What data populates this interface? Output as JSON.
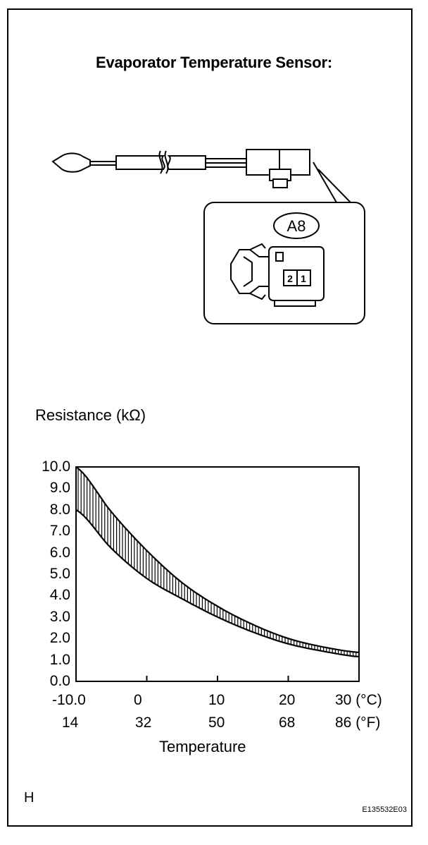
{
  "title": "Evaporator Temperature Sensor:",
  "connector": {
    "label": "A8",
    "pins": [
      "2",
      "1"
    ]
  },
  "chart_data": {
    "type": "area",
    "title": "",
    "ylabel": "Resistance (kΩ)",
    "xlabel": "Temperature",
    "x": [
      -10,
      -5,
      0,
      5,
      10,
      15,
      20,
      25,
      30
    ],
    "series": [
      {
        "values": [
          10.0,
          7.9,
          6.1,
          4.6,
          3.5,
          2.65,
          2.0,
          1.6,
          1.35
        ]
      },
      {
        "values": [
          8.0,
          6.2,
          4.8,
          3.85,
          3.0,
          2.3,
          1.75,
          1.4,
          1.15
        ]
      }
    ],
    "xlim": [
      -10,
      30
    ],
    "ylim": [
      0,
      10
    ],
    "y_ticks": [
      "0.0",
      "1.0",
      "2.0",
      "3.0",
      "4.0",
      "5.0",
      "6.0",
      "7.0",
      "8.0",
      "9.0",
      "10.0"
    ],
    "x_ticks_c": [
      "-10.0",
      "0",
      "10",
      "20",
      "30 (°C)"
    ],
    "x_ticks_f": [
      "14",
      "32",
      "50",
      "68",
      "86 (°F)"
    ]
  },
  "footer": {
    "corner": "H",
    "code": "E135532E03"
  }
}
